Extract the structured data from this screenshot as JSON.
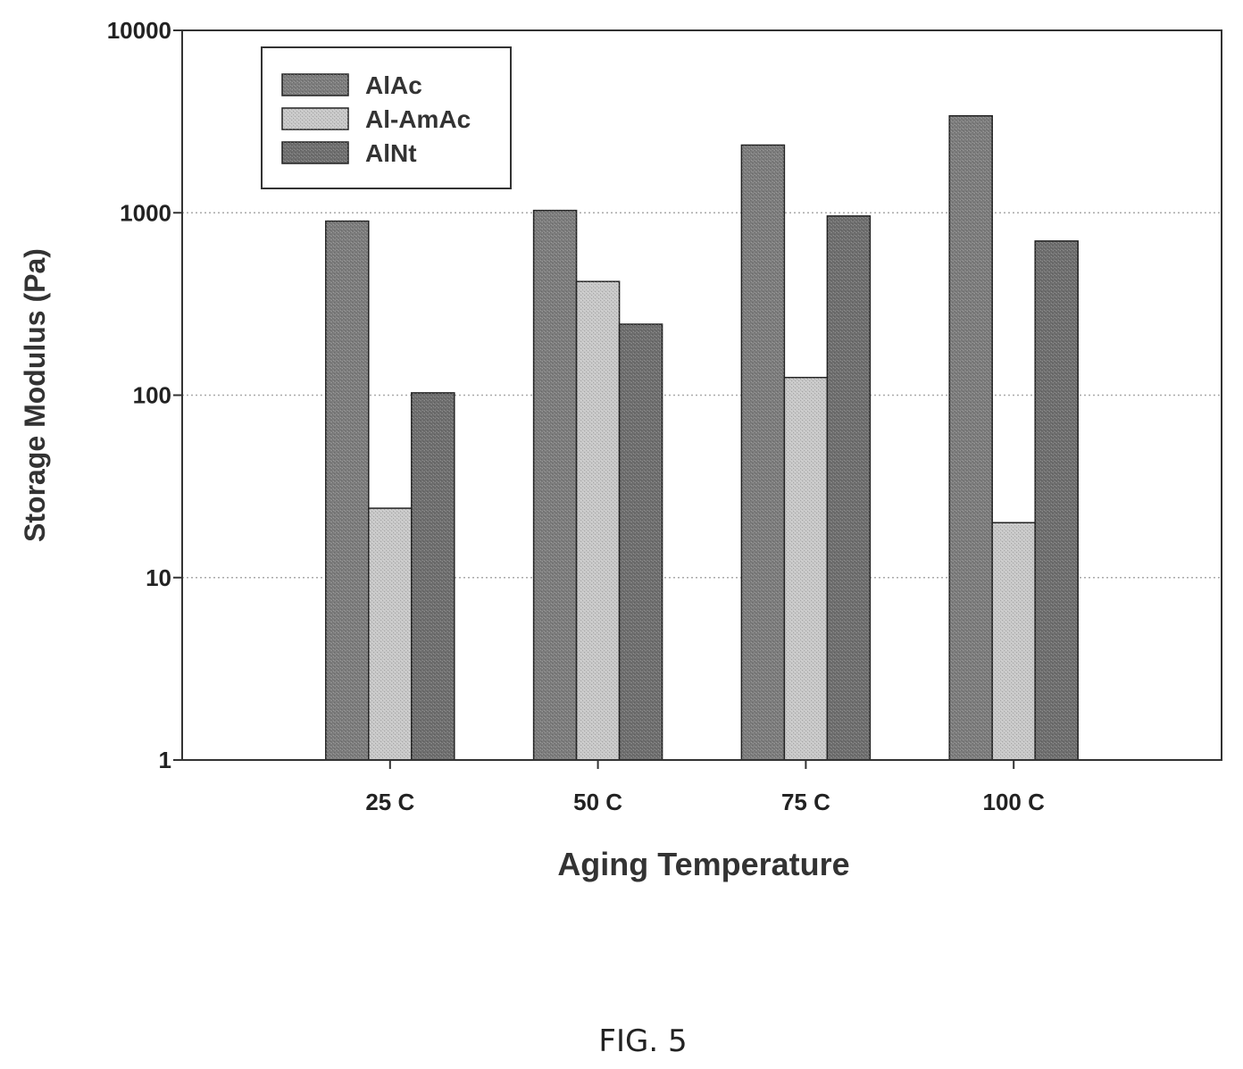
{
  "caption": "FIG. 5",
  "chart_data": {
    "type": "bar",
    "title": "",
    "xlabel": "Aging Temperature",
    "ylabel": "Storage Modulus (Pa)",
    "y_scale": "log",
    "ylim": [
      1,
      10000
    ],
    "y_ticks": [
      "1",
      "10",
      "100",
      "1000",
      "10000"
    ],
    "grid": true,
    "legend_position": "top-left",
    "categories": [
      "25 C",
      "50 C",
      "75 C",
      "100 C"
    ],
    "series": [
      {
        "name": "AlAc",
        "color": "#7d7d7d",
        "values": [
          900,
          1030,
          2350,
          3400
        ]
      },
      {
        "name": "Al-AmAc",
        "color": "#c8c8c8",
        "values": [
          24,
          420,
          125,
          20
        ]
      },
      {
        "name": "AlNt",
        "color": "#6f6f6f",
        "values": [
          103,
          245,
          960,
          700
        ]
      }
    ]
  }
}
